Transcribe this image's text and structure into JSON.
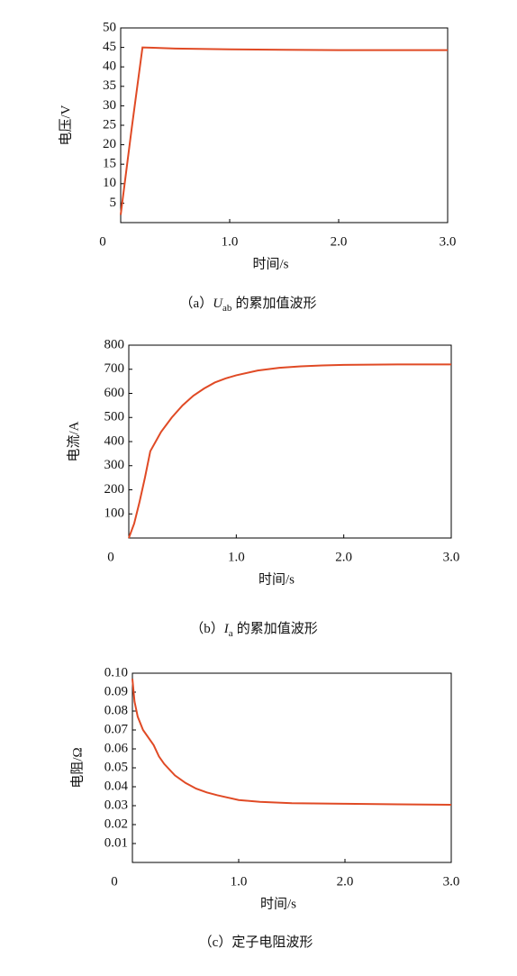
{
  "chart_data": [
    {
      "type": "line",
      "ylabel": "电压/V",
      "xlabel": "时间/s",
      "caption_label": "（a）",
      "caption_symbol": "U",
      "caption_subscript": "ab",
      "caption_text": "的累加值波形",
      "xlim": [
        0,
        3
      ],
      "ylim": [
        0,
        50
      ],
      "xticks": [
        0,
        {
          "value": 1,
          "label": "1.0"
        },
        {
          "value": 2,
          "label": "2.0"
        },
        {
          "value": 3,
          "label": "3.0"
        }
      ],
      "yticks": [
        5,
        10,
        15,
        20,
        25,
        30,
        35,
        40,
        45,
        50
      ],
      "series": [
        {
          "color": "#e04a25",
          "x": [
            0,
            0.05,
            0.1,
            0.2,
            0.3,
            0.5,
            1,
            1.5,
            2,
            2.5,
            3
          ],
          "values": [
            2,
            13,
            24,
            45,
            44.9,
            44.7,
            44.5,
            44.4,
            44.3,
            44.3,
            44.3
          ]
        }
      ]
    },
    {
      "type": "line",
      "ylabel": "电流/A",
      "xlabel": "时间/s",
      "caption_label": "（b）",
      "caption_symbol": "I",
      "caption_subscript": "a",
      "caption_text": "的累加值波形",
      "xlim": [
        0,
        3
      ],
      "ylim": [
        0,
        800
      ],
      "xticks": [
        0,
        {
          "value": 1,
          "label": "1.0"
        },
        {
          "value": 2,
          "label": "2.0"
        },
        {
          "value": 3,
          "label": "3.0"
        }
      ],
      "yticks": [
        100,
        200,
        300,
        400,
        500,
        600,
        700,
        800
      ],
      "series": [
        {
          "color": "#e04a25",
          "x": [
            0,
            0.05,
            0.1,
            0.15,
            0.2,
            0.25,
            0.3,
            0.4,
            0.5,
            0.6,
            0.7,
            0.8,
            0.9,
            1,
            1.2,
            1.4,
            1.6,
            1.8,
            2,
            2.5,
            3
          ],
          "values": [
            0,
            60,
            150,
            250,
            360,
            400,
            440,
            500,
            550,
            590,
            620,
            645,
            662,
            675,
            695,
            706,
            712,
            716,
            718,
            720,
            720
          ]
        }
      ]
    },
    {
      "type": "line",
      "ylabel": "电阻/Ω",
      "xlabel": "时间/s",
      "caption_label": "（c）",
      "caption_text": "定子电阻波形",
      "xlim": [
        0,
        3
      ],
      "ylim": [
        0,
        0.1
      ],
      "xticks": [
        0,
        {
          "value": 1,
          "label": "1.0"
        },
        {
          "value": 2,
          "label": "2.0"
        },
        {
          "value": 3,
          "label": "3.0"
        }
      ],
      "yticks": [
        0.01,
        0.02,
        0.03,
        0.04,
        0.05,
        0.06,
        0.07,
        0.08,
        0.09,
        {
          "value": 0.1,
          "label": "0.10"
        }
      ],
      "series": [
        {
          "color": "#e04a25",
          "x": [
            0,
            0.02,
            0.05,
            0.1,
            0.2,
            0.25,
            0.3,
            0.4,
            0.5,
            0.6,
            0.7,
            0.8,
            1,
            1.2,
            1.5,
            2,
            2.5,
            3
          ],
          "values": [
            0.097,
            0.085,
            0.077,
            0.07,
            0.062,
            0.056,
            0.052,
            0.046,
            0.042,
            0.039,
            0.037,
            0.0355,
            0.033,
            0.032,
            0.0313,
            0.031,
            0.0307,
            0.0305
          ]
        }
      ]
    }
  ]
}
